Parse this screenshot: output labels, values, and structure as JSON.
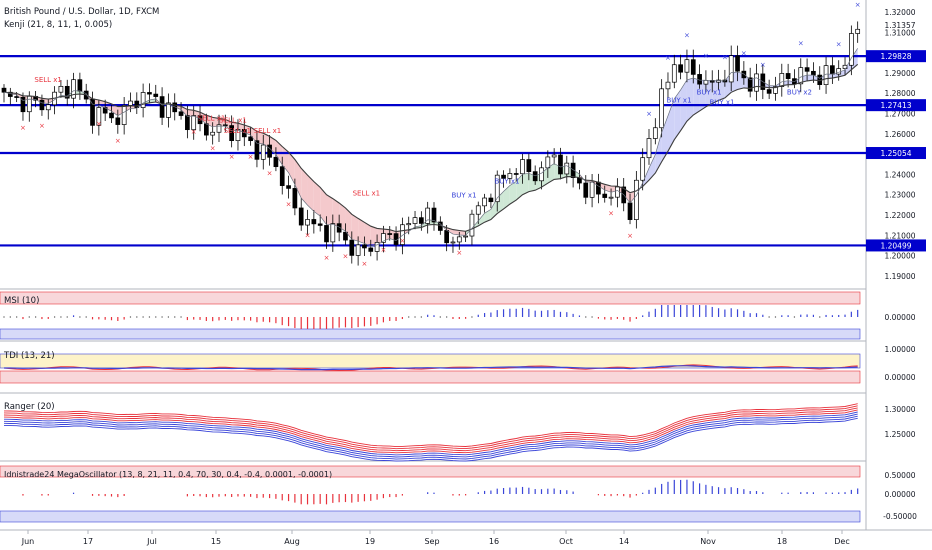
{
  "header": {
    "symbol_title": "British Pound / U.S. Dollar, 1D, FXCM",
    "indicator": "Kenji (21, 8, 11, 1, 0.005)"
  },
  "panes": {
    "msi": "MSI (10)",
    "tdi": "TDI (13, 21)",
    "ranger": "Ranger (20)",
    "mega": "Idnistrade24 MegaOscillator (13, 8, 21, 11, 0.4, 70, 30, 0.4, -0.4, 0.0001, -0.0001)"
  },
  "x_axis_labels": [
    "Jun",
    "17",
    "Jul",
    "15",
    "Aug",
    "19",
    "Sep",
    "16",
    "Oct",
    "14",
    "Nov",
    "18",
    "Dec"
  ],
  "colors": {
    "up": "#ffffff",
    "down": "#000000",
    "level_line": "#0000cc",
    "sell": "#e8323c",
    "buy": "#3a45d8",
    "cloud_red": "#f4c9cc",
    "cloud_blue": "#cfd2f7",
    "cloud_green": "#cfe8d6"
  },
  "chart_data": [
    {
      "type": "candlestick",
      "title": "British Pound / U.S. Dollar, 1D, FXCM",
      "x_axis": [
        "Jun",
        "17",
        "Jul",
        "15",
        "Aug",
        "19",
        "Sep",
        "16",
        "Oct",
        "14",
        "Nov",
        "18",
        "Dec"
      ],
      "y_ticks": [
        "1.32000",
        "1.31000",
        "1.29000",
        "1.28000",
        "1.27000",
        "1.26000",
        "1.24000",
        "1.23000",
        "1.22000",
        "1.21000",
        "1.20000",
        "1.19000"
      ],
      "ylim": [
        1.185,
        1.323
      ],
      "last_price": "1.31357",
      "levels": [
        {
          "value": 1.29828,
          "label": "1.29828"
        },
        {
          "value": 1.27413,
          "label": "1.27413"
        },
        {
          "value": 1.25054,
          "label": "1.25054"
        },
        {
          "value": 1.20499,
          "label": "1.20499"
        }
      ],
      "signals": [
        {
          "text": "SELL x1",
          "x": 0.04,
          "price": 1.2855
        },
        {
          "text": "SELL x1",
          "x": 0.23,
          "price": 1.2665
        },
        {
          "text": "SELL x1",
          "x": 0.255,
          "price": 1.2655
        },
        {
          "text": "SELL x1",
          "x": 0.26,
          "price": 1.2605
        },
        {
          "text": "SELL x1",
          "x": 0.295,
          "price": 1.2605
        },
        {
          "text": "SELL x1",
          "x": 0.41,
          "price": 1.2295
        },
        {
          "text": "BUY x1",
          "x": 0.525,
          "price": 1.2285
        },
        {
          "text": "BUY x1",
          "x": 0.575,
          "price": 1.2355
        },
        {
          "text": "BUY x1",
          "x": 0.775,
          "price": 1.2755
        },
        {
          "text": "BUY x1",
          "x": 0.81,
          "price": 1.2795
        },
        {
          "text": "BUY x1",
          "x": 0.825,
          "price": 1.2745
        },
        {
          "text": "BUY x2",
          "x": 0.915,
          "price": 1.2795
        }
      ]
    },
    {
      "type": "bar",
      "title": "MSI (10)",
      "y_ticks": [
        "0.00000"
      ]
    },
    {
      "type": "line",
      "title": "TDI (13, 21)",
      "y_ticks": [
        "1.00000",
        "0.00000"
      ]
    },
    {
      "type": "line",
      "title": "Ranger (20)",
      "y_ticks": [
        "1.30000",
        "1.25000"
      ]
    },
    {
      "type": "bar",
      "title": "Idnistrade24 MegaOscillator (13, 8, 21, 11, 0.4, 70, 30, 0.4, -0.4, 0.0001, -0.0001)",
      "y_ticks": [
        "0.50000",
        "0.00000",
        "-0.50000"
      ]
    }
  ]
}
